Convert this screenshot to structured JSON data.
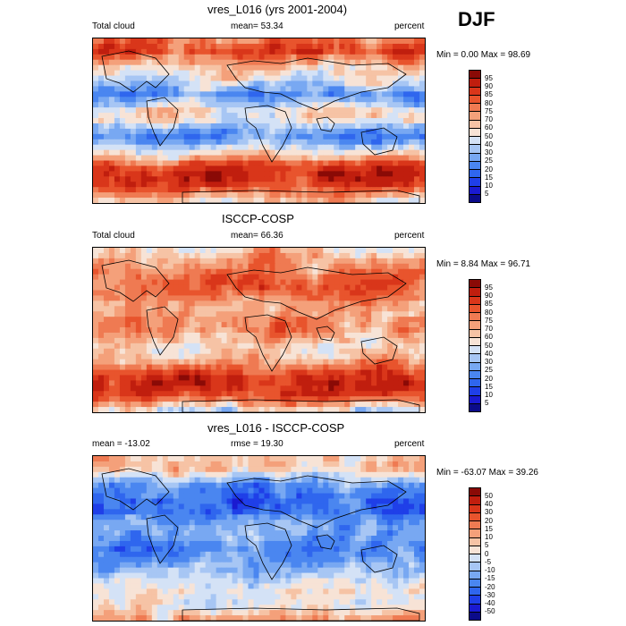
{
  "season_label": "DJF",
  "units": "percent",
  "chart_data": [
    {
      "type": "heatmap",
      "title": "vres_L016 (yrs 2001-2004)",
      "left_label": "Total cloud",
      "center_label": "mean=  53.34",
      "right_label": "percent",
      "range_label": "Min =   0.00 Max =  98.69",
      "levels": [
        "95",
        "90",
        "85",
        "80",
        "75",
        "70",
        "60",
        "50",
        "40",
        "30",
        "25",
        "20",
        "15",
        "10",
        "5"
      ],
      "zonal_profile": [
        72,
        82,
        70,
        58,
        50,
        40,
        30,
        40,
        55,
        50,
        35,
        30,
        45,
        60,
        82,
        90,
        88,
        75,
        60
      ],
      "noise_seed": 7
    },
    {
      "type": "heatmap",
      "title": "ISCCP-COSP",
      "left_label": "Total cloud",
      "center_label": "mean=  66.36",
      "right_label": "percent",
      "range_label": "Min =   8.84 Max =  96.71",
      "levels": [
        "95",
        "90",
        "85",
        "80",
        "75",
        "70",
        "60",
        "50",
        "40",
        "30",
        "25",
        "20",
        "15",
        "10",
        "5"
      ],
      "zonal_profile": [
        55,
        65,
        70,
        75,
        78,
        75,
        65,
        62,
        70,
        68,
        60,
        55,
        60,
        72,
        85,
        90,
        88,
        72,
        50
      ],
      "noise_seed": 23
    },
    {
      "type": "heatmap",
      "title": "vres_L016 - ISCCP-COSP",
      "left_label": "mean = -13.02",
      "center_label": "rmse =  19.30",
      "right_label": "percent",
      "range_label": "Min = -63.07 Max =  39.26",
      "levels": [
        "50",
        "40",
        "30",
        "20",
        "15",
        "10",
        "5",
        "0",
        "-5",
        "-10",
        "-15",
        "-20",
        "-30",
        "-40",
        "-50"
      ],
      "zonal_profile": [
        10,
        12,
        -5,
        -22,
        -28,
        -30,
        -30,
        -20,
        -15,
        -20,
        -25,
        -22,
        -15,
        -10,
        -3,
        2,
        0,
        3,
        15
      ],
      "noise_seed": 41
    }
  ]
}
